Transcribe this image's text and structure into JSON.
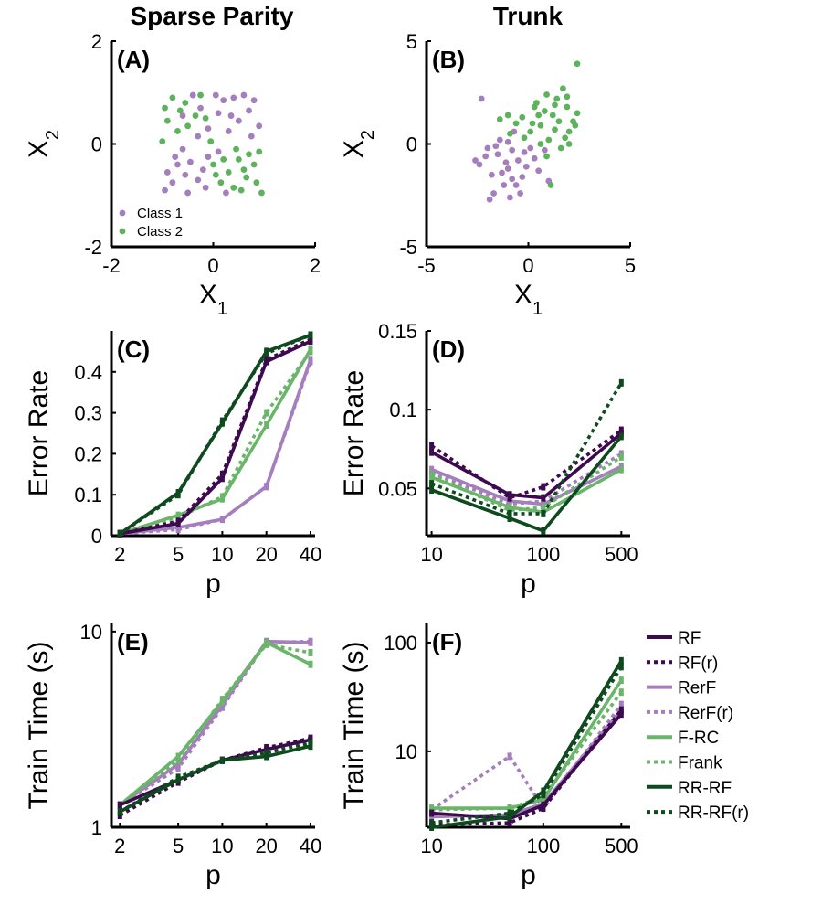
{
  "colors": {
    "RF": "#3d0a4f",
    "RF(r)": "#3d0a4f",
    "RerF": "#a57ebd",
    "RerF(r)": "#a57ebd",
    "F-RC": "#6bb56b",
    "Frank": "#6bb56b",
    "RR-RF": "#0e4a1e",
    "RR-RF(r)": "#0e4a1e",
    "class1": "#a57ebd",
    "class2": "#5cb35c"
  },
  "columns": {
    "left": "Sparse Parity",
    "right": "Trunk"
  },
  "legend": [
    "RF",
    "RF(r)",
    "RerF",
    "RerF(r)",
    "F-RC",
    "Frank",
    "RR-RF",
    "RR-RF(r)"
  ],
  "chart_data": [
    {
      "panel": "(A)",
      "type": "scatter",
      "xlabel": "X",
      "xlabel_sub": "1",
      "ylabel": "X",
      "ylabel_sub": "2",
      "xlim": [
        -2,
        2
      ],
      "ylim": [
        -2,
        2
      ],
      "xticks": [
        -2,
        0,
        2
      ],
      "yticks": [
        -2,
        0,
        2
      ],
      "legend": [
        "Class 1",
        "Class 2"
      ],
      "series": [
        {
          "name": "Class 1",
          "points": [
            [
              -0.4,
              0.95
            ],
            [
              0.1,
              0.6
            ],
            [
              0.4,
              0.9
            ],
            [
              0.7,
              0.65
            ],
            [
              -0.6,
              0.55
            ],
            [
              -0.1,
              0.3
            ],
            [
              0.3,
              0.25
            ],
            [
              0.9,
              0.35
            ],
            [
              0.2,
              0.85
            ],
            [
              0.6,
              0.95
            ],
            [
              -0.3,
              0.15
            ],
            [
              0.5,
              0.45
            ],
            [
              0.8,
              0.85
            ],
            [
              0.05,
              0.95
            ],
            [
              -0.7,
              -0.4
            ],
            [
              -0.3,
              -0.7
            ],
            [
              -0.8,
              -0.75
            ],
            [
              -0.5,
              -0.95
            ],
            [
              -0.1,
              -0.25
            ],
            [
              -0.6,
              -0.1
            ],
            [
              -0.9,
              -0.55
            ],
            [
              -0.2,
              -0.5
            ],
            [
              -0.45,
              -0.35
            ],
            [
              0.25,
              -0.95
            ],
            [
              -0.75,
              -0.25
            ],
            [
              -0.15,
              -0.85
            ],
            [
              -0.95,
              -0.9
            ],
            [
              -0.55,
              -0.6
            ],
            [
              0.1,
              -0.15
            ],
            [
              0.35,
              0.55
            ],
            [
              -0.25,
              0.7
            ],
            [
              0.75,
              0.15
            ]
          ]
        },
        {
          "name": "Class 2",
          "points": [
            [
              -0.8,
              0.9
            ],
            [
              -0.55,
              0.8
            ],
            [
              -0.9,
              0.45
            ],
            [
              -0.35,
              0.55
            ],
            [
              -0.7,
              0.25
            ],
            [
              -0.15,
              0.5
            ],
            [
              -0.5,
              0.35
            ],
            [
              -1.0,
              0.05
            ],
            [
              -0.25,
              0.95
            ],
            [
              -0.65,
              0.65
            ],
            [
              -0.95,
              0.7
            ],
            [
              0.2,
              -0.3
            ],
            [
              0.6,
              -0.5
            ],
            [
              0.4,
              -0.85
            ],
            [
              0.85,
              -0.75
            ],
            [
              0.05,
              -0.6
            ],
            [
              0.7,
              -0.2
            ],
            [
              0.3,
              -0.55
            ],
            [
              0.95,
              -0.95
            ],
            [
              0.55,
              -0.9
            ],
            [
              0.15,
              -0.75
            ],
            [
              0.8,
              -0.4
            ],
            [
              0.45,
              -0.1
            ],
            [
              0.9,
              -0.15
            ],
            [
              0.65,
              -0.65
            ],
            [
              0.0,
              -0.4
            ],
            [
              -0.05,
              0.05
            ],
            [
              0.5,
              -0.3
            ]
          ]
        }
      ]
    },
    {
      "panel": "(B)",
      "type": "scatter",
      "xlabel": "X",
      "xlabel_sub": "1",
      "ylabel": "X",
      "ylabel_sub": "2",
      "xlim": [
        -5,
        5
      ],
      "ylim": [
        -5,
        5
      ],
      "xticks": [
        -5,
        0,
        5
      ],
      "yticks": [
        -5,
        0,
        5
      ],
      "series": [
        {
          "name": "Class 1",
          "points": [
            [
              -2.3,
              2.2
            ],
            [
              -1.5,
              -0.5
            ],
            [
              -1.0,
              -1.2
            ],
            [
              -1.8,
              -1.5
            ],
            [
              -0.5,
              -0.8
            ],
            [
              -1.2,
              -2.0
            ],
            [
              -0.8,
              -0.3
            ],
            [
              -2.0,
              -0.2
            ],
            [
              -1.4,
              0.2
            ],
            [
              -0.3,
              -1.6
            ],
            [
              -1.7,
              -2.4
            ],
            [
              -0.9,
              -2.6
            ],
            [
              -0.2,
              -0.4
            ],
            [
              -2.4,
              -1.0
            ],
            [
              -1.1,
              -0.9
            ],
            [
              -0.6,
              -2.0
            ],
            [
              0.3,
              -0.7
            ],
            [
              -1.9,
              -2.7
            ],
            [
              -1.3,
              -1.4
            ],
            [
              -0.7,
              0.6
            ],
            [
              -0.1,
              -1.1
            ],
            [
              -2.1,
              -0.6
            ],
            [
              0.5,
              -1.3
            ],
            [
              -1.6,
              -0.1
            ],
            [
              -0.4,
              -2.4
            ],
            [
              0.8,
              -0.3
            ],
            [
              -1.0,
              0.1
            ],
            [
              -2.6,
              -0.8
            ],
            [
              0.1,
              -0.2
            ],
            [
              -0.8,
              -1.7
            ],
            [
              1.0,
              -1.8
            ]
          ]
        },
        {
          "name": "Class 2",
          "points": [
            [
              2.4,
              3.9
            ],
            [
              1.7,
              2.7
            ],
            [
              0.9,
              2.4
            ],
            [
              0.3,
              1.8
            ],
            [
              1.2,
              1.4
            ],
            [
              2.0,
              0.6
            ],
            [
              1.5,
              1.1
            ],
            [
              0.6,
              0.9
            ],
            [
              -0.3,
              1.3
            ],
            [
              1.9,
              1.8
            ],
            [
              2.2,
              1.1
            ],
            [
              0.1,
              0.6
            ],
            [
              1.0,
              0.2
            ],
            [
              1.4,
              2.2
            ],
            [
              -0.6,
              1.0
            ],
            [
              0.4,
              2.0
            ],
            [
              2.4,
              1.5
            ],
            [
              1.8,
              0.3
            ],
            [
              0.8,
              1.6
            ],
            [
              -1.0,
              1.4
            ],
            [
              1.3,
              0.7
            ],
            [
              2.0,
              0.0
            ],
            [
              -0.2,
              0.3
            ],
            [
              0.6,
              0.0
            ],
            [
              1.6,
              -0.2
            ],
            [
              -0.9,
              0.5
            ],
            [
              0.9,
              -0.6
            ],
            [
              1.1,
              -2.0
            ],
            [
              0.2,
              1.0
            ],
            [
              1.9,
              2.3
            ],
            [
              1.3,
              1.9
            ],
            [
              0.5,
              1.4
            ],
            [
              -1.4,
              1.2
            ],
            [
              2.3,
              0.9
            ]
          ]
        }
      ]
    },
    {
      "panel": "(C)",
      "type": "line",
      "xlabel": "p",
      "ylabel": "Error Rate",
      "x": [
        2,
        5,
        10,
        20,
        40
      ],
      "xscale": "log",
      "xlim": [
        1.75,
        43
      ],
      "ylim": [
        0,
        0.5
      ],
      "yticks": [
        0,
        0.1,
        0.2,
        0.3,
        0.4
      ],
      "ytick_labels": [
        "0",
        "0.1",
        "0.2",
        "0.3",
        "0.4"
      ],
      "series": [
        {
          "name": "RF",
          "values": [
            0.005,
            0.03,
            0.14,
            0.425,
            0.475
          ]
        },
        {
          "name": "RF(r)",
          "values": [
            0.005,
            0.035,
            0.15,
            0.43,
            0.48
          ]
        },
        {
          "name": "RerF",
          "values": [
            0.005,
            0.02,
            0.04,
            0.12,
            0.43
          ]
        },
        {
          "name": "RerF(r)",
          "values": [
            0.005,
            0.015,
            0.04,
            0.12,
            0.425
          ]
        },
        {
          "name": "F-RC",
          "values": [
            0.005,
            0.05,
            0.09,
            0.27,
            0.455
          ]
        },
        {
          "name": "Frank",
          "values": [
            0.005,
            0.045,
            0.095,
            0.3,
            0.45
          ]
        },
        {
          "name": "RR-RF",
          "values": [
            0.005,
            0.105,
            0.275,
            0.45,
            0.49
          ]
        },
        {
          "name": "RR-RF(r)",
          "values": [
            0.005,
            0.1,
            0.28,
            0.445,
            0.49
          ]
        }
      ]
    },
    {
      "panel": "(D)",
      "type": "line",
      "xlabel": "p",
      "ylabel": "Error Rate",
      "x": [
        10,
        50,
        100,
        500
      ],
      "xscale": "log",
      "xlim": [
        9,
        600
      ],
      "xticks": [
        10,
        100,
        500
      ],
      "ylim": [
        0.02,
        0.15
      ],
      "yticks": [
        0.05,
        0.1,
        0.15
      ],
      "ytick_labels": [
        "0.05",
        "0.1",
        "0.15"
      ],
      "series": [
        {
          "name": "RF",
          "values": [
            0.073,
            0.046,
            0.044,
            0.085
          ]
        },
        {
          "name": "RF(r)",
          "values": [
            0.077,
            0.044,
            0.051,
            0.087
          ]
        },
        {
          "name": "RerF",
          "values": [
            0.062,
            0.042,
            0.04,
            0.064
          ]
        },
        {
          "name": "RerF(r)",
          "values": [
            0.06,
            0.04,
            0.042,
            0.072
          ]
        },
        {
          "name": "F-RC",
          "values": [
            0.057,
            0.038,
            0.035,
            0.062
          ]
        },
        {
          "name": "Frank",
          "values": [
            0.059,
            0.036,
            0.038,
            0.07
          ]
        },
        {
          "name": "RR-RF",
          "values": [
            0.049,
            0.031,
            0.023,
            0.083
          ]
        },
        {
          "name": "RR-RF(r)",
          "values": [
            0.053,
            0.034,
            0.034,
            0.117
          ]
        }
      ]
    },
    {
      "panel": "(E)",
      "type": "line",
      "xlabel": "p",
      "ylabel": "Train Time (s)",
      "x": [
        2,
        5,
        10,
        20,
        40
      ],
      "xscale": "log",
      "yscale": "log",
      "xlim": [
        1.75,
        43
      ],
      "ylim": [
        1,
        11
      ],
      "yticks": [
        1,
        10
      ],
      "ytick_labels": [
        "1",
        "10"
      ],
      "series": [
        {
          "name": "RF",
          "values": [
            1.3,
            1.75,
            2.2,
            2.5,
            2.8
          ]
        },
        {
          "name": "RF(r)",
          "values": [
            1.15,
            1.7,
            2.2,
            2.55,
            2.85
          ]
        },
        {
          "name": "RerF",
          "values": [
            1.3,
            2.1,
            4.2,
            8.9,
            8.8
          ]
        },
        {
          "name": "RerF(r)",
          "values": [
            1.3,
            2.0,
            4.1,
            8.8,
            8.9
          ]
        },
        {
          "name": "F-RC",
          "values": [
            1.3,
            2.3,
            4.4,
            8.8,
            6.8
          ]
        },
        {
          "name": "Frank",
          "values": [
            1.3,
            2.2,
            4.5,
            8.6,
            7.8
          ]
        },
        {
          "name": "RR-RF",
          "values": [
            1.2,
            1.75,
            2.2,
            2.3,
            2.6
          ]
        },
        {
          "name": "RR-RF(r)",
          "values": [
            1.2,
            1.8,
            2.2,
            2.4,
            2.7
          ]
        }
      ]
    },
    {
      "panel": "(F)",
      "type": "line",
      "xlabel": "p",
      "ylabel": "Train Time (s)",
      "x": [
        10,
        50,
        100,
        500
      ],
      "xscale": "log",
      "yscale": "log",
      "xlim": [
        9,
        600
      ],
      "xticks": [
        10,
        100,
        500
      ],
      "ylim": [
        2,
        150
      ],
      "yticks": [
        10,
        100
      ],
      "ytick_labels": [
        "10",
        "100"
      ],
      "series": [
        {
          "name": "RF",
          "values": [
            2.7,
            2.4,
            3.2,
            22
          ]
        },
        {
          "name": "RF(r)",
          "values": [
            2.1,
            2.2,
            3.0,
            24
          ]
        },
        {
          "name": "RerF",
          "values": [
            2.5,
            2.6,
            3.3,
            24
          ]
        },
        {
          "name": "RerF(r)",
          "values": [
            2.9,
            9.0,
            3.0,
            27
          ]
        },
        {
          "name": "F-RC",
          "values": [
            3.0,
            3.0,
            3.6,
            45
          ]
        },
        {
          "name": "Frank",
          "values": [
            2.9,
            3.0,
            3.8,
            35
          ]
        },
        {
          "name": "RR-RF",
          "values": [
            2.0,
            2.5,
            4.3,
            68
          ]
        },
        {
          "name": "RR-RF(r)",
          "values": [
            2.2,
            2.7,
            4.0,
            60
          ]
        }
      ]
    }
  ]
}
